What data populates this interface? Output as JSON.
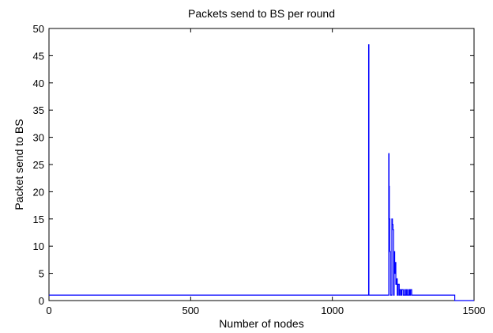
{
  "chart_data": {
    "type": "line",
    "title": "Packets send to BS per round",
    "xlabel": "Number of nodes",
    "ylabel": "Packet send to BS",
    "xlim": [
      0,
      1500
    ],
    "ylim": [
      0,
      50
    ],
    "xticks": [
      "0",
      "500",
      "1000",
      "1500"
    ],
    "yticks": [
      "0",
      "5",
      "10",
      "15",
      "20",
      "25",
      "30",
      "35",
      "40",
      "45",
      "50"
    ],
    "grid": false,
    "series": [
      {
        "color": "#0000ff",
        "x": [
          0,
          1128,
          1128,
          1129,
          1129,
          1130,
          1130,
          1199,
          1199,
          1200,
          1200,
          1201,
          1201,
          1203,
          1203,
          1205,
          1205,
          1210,
          1210,
          1212,
          1212,
          1214,
          1214,
          1216,
          1216,
          1218,
          1218,
          1220,
          1220,
          1222,
          1222,
          1224,
          1224,
          1227,
          1227,
          1229,
          1229,
          1232,
          1232,
          1236,
          1236,
          1238,
          1238,
          1242,
          1242,
          1245,
          1245,
          1250,
          1250,
          1255,
          1255,
          1258,
          1258,
          1262,
          1262,
          1265,
          1265,
          1270,
          1270,
          1273,
          1273,
          1276,
          1276,
          1280,
          1280,
          1284,
          1284,
          1432,
          1432,
          1500
        ],
        "values": [
          1,
          1,
          47,
          47,
          1,
          1,
          1,
          1,
          27,
          27,
          21,
          21,
          15,
          15,
          9,
          9,
          1,
          1,
          15,
          15,
          14,
          14,
          13,
          13,
          1,
          1,
          9,
          9,
          5,
          5,
          7,
          7,
          3,
          3,
          4,
          4,
          1,
          1,
          3,
          3,
          1,
          1,
          2,
          2,
          1,
          1,
          2,
          2,
          1,
          1,
          2,
          2,
          1,
          1,
          2,
          2,
          1,
          1,
          2,
          2,
          1,
          1,
          2,
          2,
          1,
          1,
          1,
          1,
          0,
          0
        ]
      }
    ]
  }
}
